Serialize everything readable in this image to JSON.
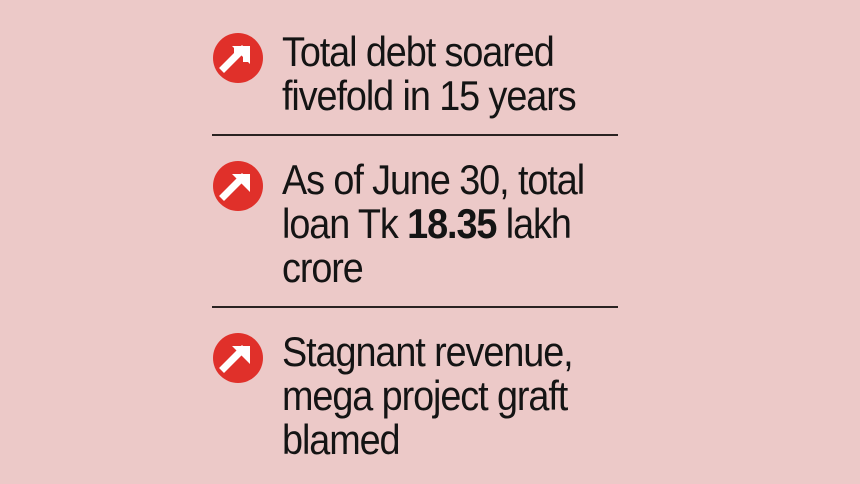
{
  "colors": {
    "background": "#ecc9c8",
    "icon_red": "#e0302a",
    "text": "#141414",
    "divider": "#2a2222"
  },
  "icon_name": "arrow-up-right-icon",
  "items": [
    {
      "lines": [
        "Total debt soared",
        "fivefold in 15 years"
      ]
    },
    {
      "line1": "As of June 30, total",
      "line2_prefix": "loan Tk ",
      "line2_bold": "18.35",
      "line2_suffix": " lakh",
      "line3": "crore"
    },
    {
      "lines": [
        "Stagnant revenue,",
        "mega project graft",
        "blamed"
      ]
    }
  ]
}
